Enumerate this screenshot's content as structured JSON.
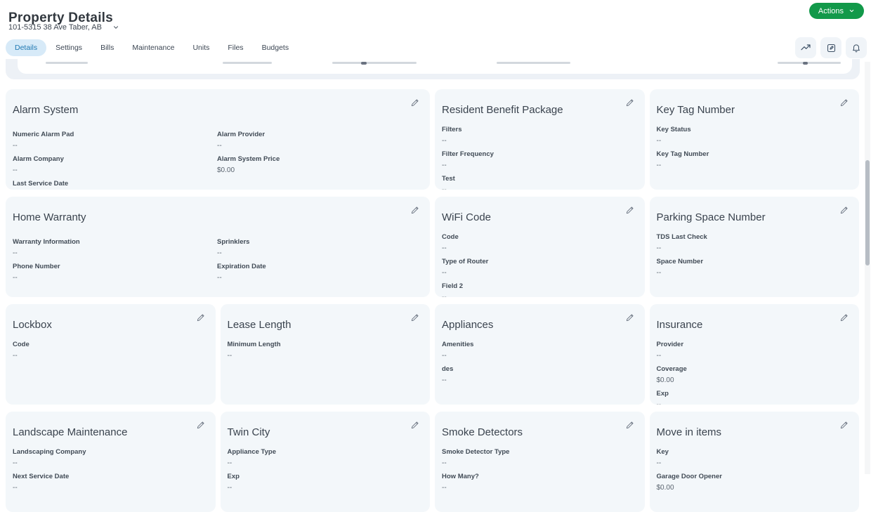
{
  "header": {
    "title": "Property Details",
    "property_selector": "101-5315 38 Ave Taber, AB",
    "actions_button": "Actions"
  },
  "tabs": [
    {
      "label": "Details",
      "active": true
    },
    {
      "label": "Settings",
      "active": false
    },
    {
      "label": "Bills",
      "active": false
    },
    {
      "label": "Maintenance",
      "active": false
    },
    {
      "label": "Units",
      "active": false
    },
    {
      "label": "Files",
      "active": false
    },
    {
      "label": "Budgets",
      "active": false
    }
  ],
  "toolbar": {
    "icons": [
      "line-chart-icon",
      "note-edit-icon",
      "bell-icon"
    ]
  },
  "cards": [
    {
      "id": "alarm-system",
      "title": "Alarm System",
      "span": 2,
      "cols": [
        [
          {
            "label": "Numeric Alarm Pad",
            "value": "--"
          },
          {
            "label": "Alarm Company",
            "value": "--"
          },
          {
            "label": "Last Service Date",
            "value": "--"
          }
        ],
        [
          {
            "label": "Alarm Provider",
            "value": "--"
          },
          {
            "label": "Alarm System Price",
            "value": "$0.00"
          }
        ]
      ]
    },
    {
      "id": "resident-benefit-package",
      "title": "Resident Benefit Package",
      "span": 1,
      "cols": [
        [
          {
            "label": "Filters",
            "value": "--"
          },
          {
            "label": "Filter Frequency",
            "value": "--"
          },
          {
            "label": "Test",
            "value": "--"
          }
        ]
      ]
    },
    {
      "id": "key-tag-number",
      "title": "Key Tag Number",
      "span": 1,
      "cols": [
        [
          {
            "label": "Key Status",
            "value": "--"
          },
          {
            "label": "Key Tag Number",
            "value": "--"
          }
        ]
      ]
    },
    {
      "id": "home-warranty",
      "title": "Home Warranty",
      "span": 2,
      "cols": [
        [
          {
            "label": "Warranty Information",
            "value": "--"
          },
          {
            "label": "Phone Number",
            "value": "--"
          }
        ],
        [
          {
            "label": "Sprinklers",
            "value": "--"
          },
          {
            "label": "Expiration Date",
            "value": "--"
          }
        ]
      ]
    },
    {
      "id": "wifi-code",
      "title": "WiFi Code",
      "span": 1,
      "cols": [
        [
          {
            "label": "Code",
            "value": "--"
          },
          {
            "label": "Type of Router",
            "value": "--"
          },
          {
            "label": "Field 2",
            "value": "--"
          }
        ]
      ]
    },
    {
      "id": "parking-space-number",
      "title": "Parking Space Number",
      "span": 1,
      "cols": [
        [
          {
            "label": "TDS Last Check",
            "value": "--"
          },
          {
            "label": "Space Number",
            "value": "--"
          }
        ]
      ]
    },
    {
      "id": "lockbox",
      "title": "Lockbox",
      "span": 1,
      "cols": [
        [
          {
            "label": "Code",
            "value": "--"
          }
        ]
      ]
    },
    {
      "id": "lease-length",
      "title": "Lease Length",
      "span": 1,
      "cols": [
        [
          {
            "label": "Minimum Length",
            "value": "--"
          }
        ]
      ]
    },
    {
      "id": "appliances",
      "title": "Appliances",
      "span": 1,
      "cols": [
        [
          {
            "label": "Amenities",
            "value": "--"
          },
          {
            "label": "des",
            "value": "--"
          }
        ]
      ]
    },
    {
      "id": "insurance",
      "title": "Insurance",
      "span": 1,
      "cols": [
        [
          {
            "label": "Provider",
            "value": "--"
          },
          {
            "label": "Coverage",
            "value": "$0.00"
          },
          {
            "label": "Exp",
            "value": "--"
          }
        ]
      ]
    },
    {
      "id": "landscape-maintenance",
      "title": "Landscape Maintenance",
      "span": 1,
      "cols": [
        [
          {
            "label": "Landscaping Company",
            "value": "--"
          },
          {
            "label": "Next Service Date",
            "value": "--"
          }
        ]
      ]
    },
    {
      "id": "twin-city",
      "title": "Twin City",
      "span": 1,
      "cols": [
        [
          {
            "label": "Appliance Type",
            "value": "--"
          },
          {
            "label": "Exp",
            "value": "--"
          }
        ]
      ]
    },
    {
      "id": "smoke-detectors",
      "title": "Smoke Detectors",
      "span": 1,
      "cols": [
        [
          {
            "label": "Smoke Detector Type",
            "value": "--"
          },
          {
            "label": "How Many?",
            "value": "--"
          }
        ]
      ]
    },
    {
      "id": "move-in-items",
      "title": "Move in items",
      "span": 1,
      "cols": [
        [
          {
            "label": "Key",
            "value": "--"
          },
          {
            "label": "Garage Door Opener",
            "value": "$0.00"
          }
        ]
      ]
    }
  ],
  "colors": {
    "accent_green": "#12994a",
    "tab_active_bg": "#d7eaf8",
    "tab_active_text": "#1f78b2",
    "card_bg": "#f3f7fa",
    "page_bg": "#ffffff"
  }
}
